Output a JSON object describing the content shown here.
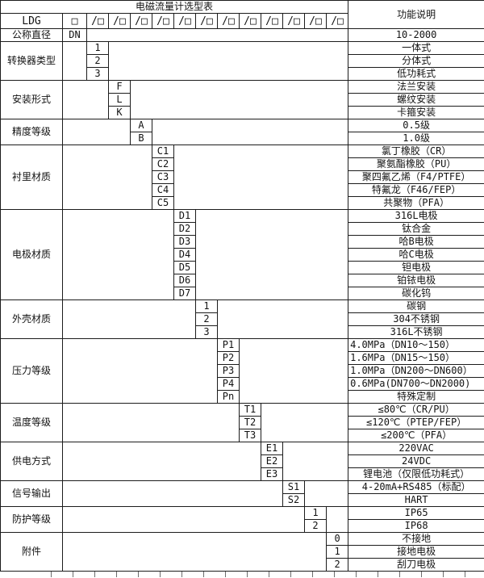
{
  "title": "电磁流量计选型表",
  "header": {
    "model_prefix": "LDG",
    "box_symbol": "□",
    "slot_symbol": "/□",
    "slot_count": 12,
    "function_col_title": "功能说明"
  },
  "categories": [
    {
      "label": "公称直径",
      "col": 1,
      "rows": [
        {
          "code": "DN",
          "desc": "10-2000"
        }
      ]
    },
    {
      "label": "转换器类型",
      "col": 2,
      "rows": [
        {
          "code": "1",
          "desc": "一体式"
        },
        {
          "code": "2",
          "desc": "分体式"
        },
        {
          "code": "3",
          "desc": "低功耗式"
        }
      ]
    },
    {
      "label": "安装形式",
      "col": 3,
      "rows": [
        {
          "code": "F",
          "desc": "法兰安装"
        },
        {
          "code": "L",
          "desc": "螺纹安装"
        },
        {
          "code": "K",
          "desc": "卡箍安装"
        }
      ]
    },
    {
      "label": "精度等级",
      "col": 4,
      "rows": [
        {
          "code": "A",
          "desc": "0.5级"
        },
        {
          "code": "B",
          "desc": "1.0级"
        }
      ]
    },
    {
      "label": "衬里材质",
      "col": 5,
      "rows": [
        {
          "code": "C1",
          "desc": "氯丁橡胶（CR）"
        },
        {
          "code": "C2",
          "desc": "聚氨酯橡胶（PU）"
        },
        {
          "code": "C3",
          "desc": "聚四氟乙烯（F4/PTFE）"
        },
        {
          "code": "C4",
          "desc": "特氟龙（F46/FEP）"
        },
        {
          "code": "C5",
          "desc": "共聚物（PFA）"
        }
      ]
    },
    {
      "label": "电极材质",
      "col": 6,
      "rows": [
        {
          "code": "D1",
          "desc": "316L电极"
        },
        {
          "code": "D2",
          "desc": "钛合金"
        },
        {
          "code": "D3",
          "desc": "哈B电极"
        },
        {
          "code": "D4",
          "desc": "哈C电极"
        },
        {
          "code": "D5",
          "desc": "钽电极"
        },
        {
          "code": "D6",
          "desc": "铂铱电极"
        },
        {
          "code": "D7",
          "desc": "碳化钨"
        }
      ]
    },
    {
      "label": "外壳材质",
      "col": 7,
      "rows": [
        {
          "code": "1",
          "desc": "碳钢"
        },
        {
          "code": "2",
          "desc": "304不锈钢"
        },
        {
          "code": "3",
          "desc": "316L不锈钢"
        }
      ]
    },
    {
      "label": "压力等级",
      "col": 8,
      "rows": [
        {
          "code": "P1",
          "desc": "4.0MPa（DN10～150）",
          "align": "left"
        },
        {
          "code": "P2",
          "desc": "1.6MPa（DN15～150）",
          "align": "left"
        },
        {
          "code": "P3",
          "desc": "1.0MPa（DN200～DN600）",
          "align": "left"
        },
        {
          "code": "P4",
          "desc": "0.6MPa(DN700～DN2000)",
          "align": "left"
        },
        {
          "code": "Pn",
          "desc": "特殊定制"
        }
      ]
    },
    {
      "label": "温度等级",
      "col": 9,
      "rows": [
        {
          "code": "T1",
          "desc": "≤80℃（CR/PU）"
        },
        {
          "code": "T2",
          "desc": "≤120℃（PTEP/FEP）"
        },
        {
          "code": "T3",
          "desc": "≤200℃（PFA）"
        }
      ]
    },
    {
      "label": "供电方式",
      "col": 10,
      "rows": [
        {
          "code": "E1",
          "desc": "220VAC"
        },
        {
          "code": "E2",
          "desc": "24VDC"
        },
        {
          "code": "E3",
          "desc": "锂电池（仅限低功耗式）"
        }
      ]
    },
    {
      "label": "信号输出",
      "col": 11,
      "rows": [
        {
          "code": "S1",
          "desc": "4-20mA+RS485（标配）"
        },
        {
          "code": "S2",
          "desc": "HART"
        }
      ]
    },
    {
      "label": "防护等级",
      "col": 12,
      "rows": [
        {
          "code": "1",
          "desc": "IP65"
        },
        {
          "code": "2",
          "desc": "IP68"
        }
      ]
    },
    {
      "label": "附件",
      "col": 13,
      "rows": [
        {
          "code": "0",
          "desc": "不接地"
        },
        {
          "code": "1",
          "desc": "接地电极"
        },
        {
          "code": "2",
          "desc": "刮刀电极"
        }
      ]
    }
  ]
}
